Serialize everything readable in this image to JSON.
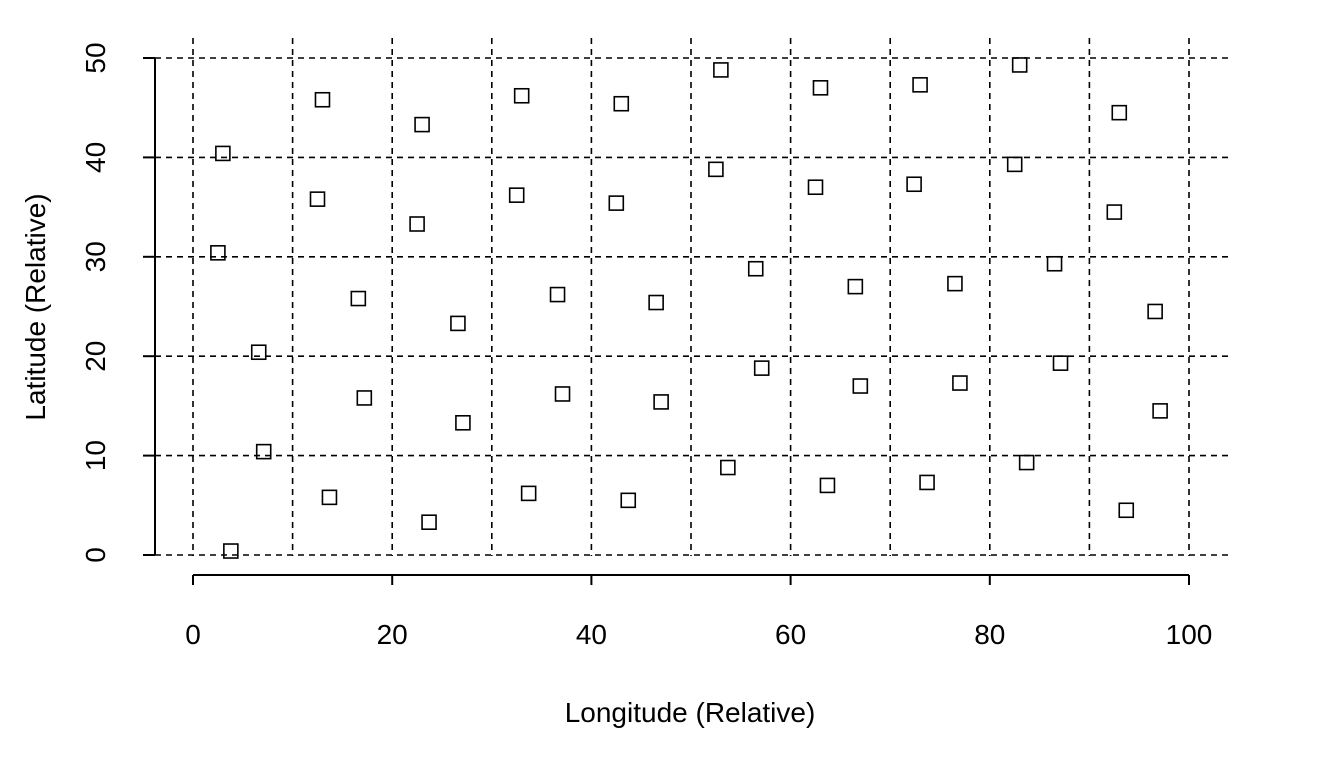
{
  "chart_data": {
    "type": "scatter",
    "title": "",
    "xlabel": "Longitude (Relative)",
    "ylabel": "Latitude (Relative)",
    "xlim": [
      0,
      100
    ],
    "ylim": [
      0,
      50
    ],
    "x_ticks": [
      "0",
      "20",
      "40",
      "60",
      "80",
      "100"
    ],
    "y_ticks": [
      "0",
      "10",
      "20",
      "30",
      "40",
      "50"
    ],
    "grid": true,
    "grid_x": [
      0,
      10,
      20,
      30,
      40,
      50,
      60,
      70,
      80,
      90,
      100
    ],
    "grid_y": [
      0,
      10,
      20,
      30,
      40,
      50
    ],
    "marker": "open-square",
    "points": [
      {
        "x": 3.8,
        "y": 0.4
      },
      {
        "x": 7.1,
        "y": 10.4
      },
      {
        "x": 6.6,
        "y": 20.4
      },
      {
        "x": 2.5,
        "y": 30.4
      },
      {
        "x": 3.0,
        "y": 40.4
      },
      {
        "x": 13.7,
        "y": 5.8
      },
      {
        "x": 17.2,
        "y": 15.8
      },
      {
        "x": 16.6,
        "y": 25.8
      },
      {
        "x": 12.5,
        "y": 35.8
      },
      {
        "x": 13.0,
        "y": 45.8
      },
      {
        "x": 23.7,
        "y": 3.3
      },
      {
        "x": 27.1,
        "y": 13.3
      },
      {
        "x": 26.6,
        "y": 23.3
      },
      {
        "x": 22.5,
        "y": 33.3
      },
      {
        "x": 23.0,
        "y": 43.3
      },
      {
        "x": 33.7,
        "y": 6.2
      },
      {
        "x": 37.1,
        "y": 16.2
      },
      {
        "x": 36.6,
        "y": 26.2
      },
      {
        "x": 32.5,
        "y": 36.2
      },
      {
        "x": 33.0,
        "y": 46.2
      },
      {
        "x": 43.7,
        "y": 5.5
      },
      {
        "x": 47.0,
        "y": 15.4
      },
      {
        "x": 46.5,
        "y": 25.4
      },
      {
        "x": 42.5,
        "y": 35.4
      },
      {
        "x": 43.0,
        "y": 45.4
      },
      {
        "x": 53.7,
        "y": 8.8
      },
      {
        "x": 57.1,
        "y": 18.8
      },
      {
        "x": 56.5,
        "y": 28.8
      },
      {
        "x": 52.5,
        "y": 38.8
      },
      {
        "x": 53.0,
        "y": 48.8
      },
      {
        "x": 63.7,
        "y": 7.0
      },
      {
        "x": 67.0,
        "y": 17.0
      },
      {
        "x": 66.5,
        "y": 27.0
      },
      {
        "x": 62.5,
        "y": 37.0
      },
      {
        "x": 63.0,
        "y": 47.0
      },
      {
        "x": 73.7,
        "y": 7.3
      },
      {
        "x": 77.0,
        "y": 17.3
      },
      {
        "x": 76.5,
        "y": 27.3
      },
      {
        "x": 72.4,
        "y": 37.3
      },
      {
        "x": 73.0,
        "y": 47.3
      },
      {
        "x": 83.7,
        "y": 9.3
      },
      {
        "x": 87.1,
        "y": 19.3
      },
      {
        "x": 86.5,
        "y": 29.3
      },
      {
        "x": 82.5,
        "y": 39.3
      },
      {
        "x": 83.0,
        "y": 49.3
      },
      {
        "x": 93.7,
        "y": 4.5
      },
      {
        "x": 97.1,
        "y": 14.5
      },
      {
        "x": 96.6,
        "y": 24.5
      },
      {
        "x": 92.5,
        "y": 34.5
      },
      {
        "x": 93.0,
        "y": 44.5
      }
    ]
  }
}
